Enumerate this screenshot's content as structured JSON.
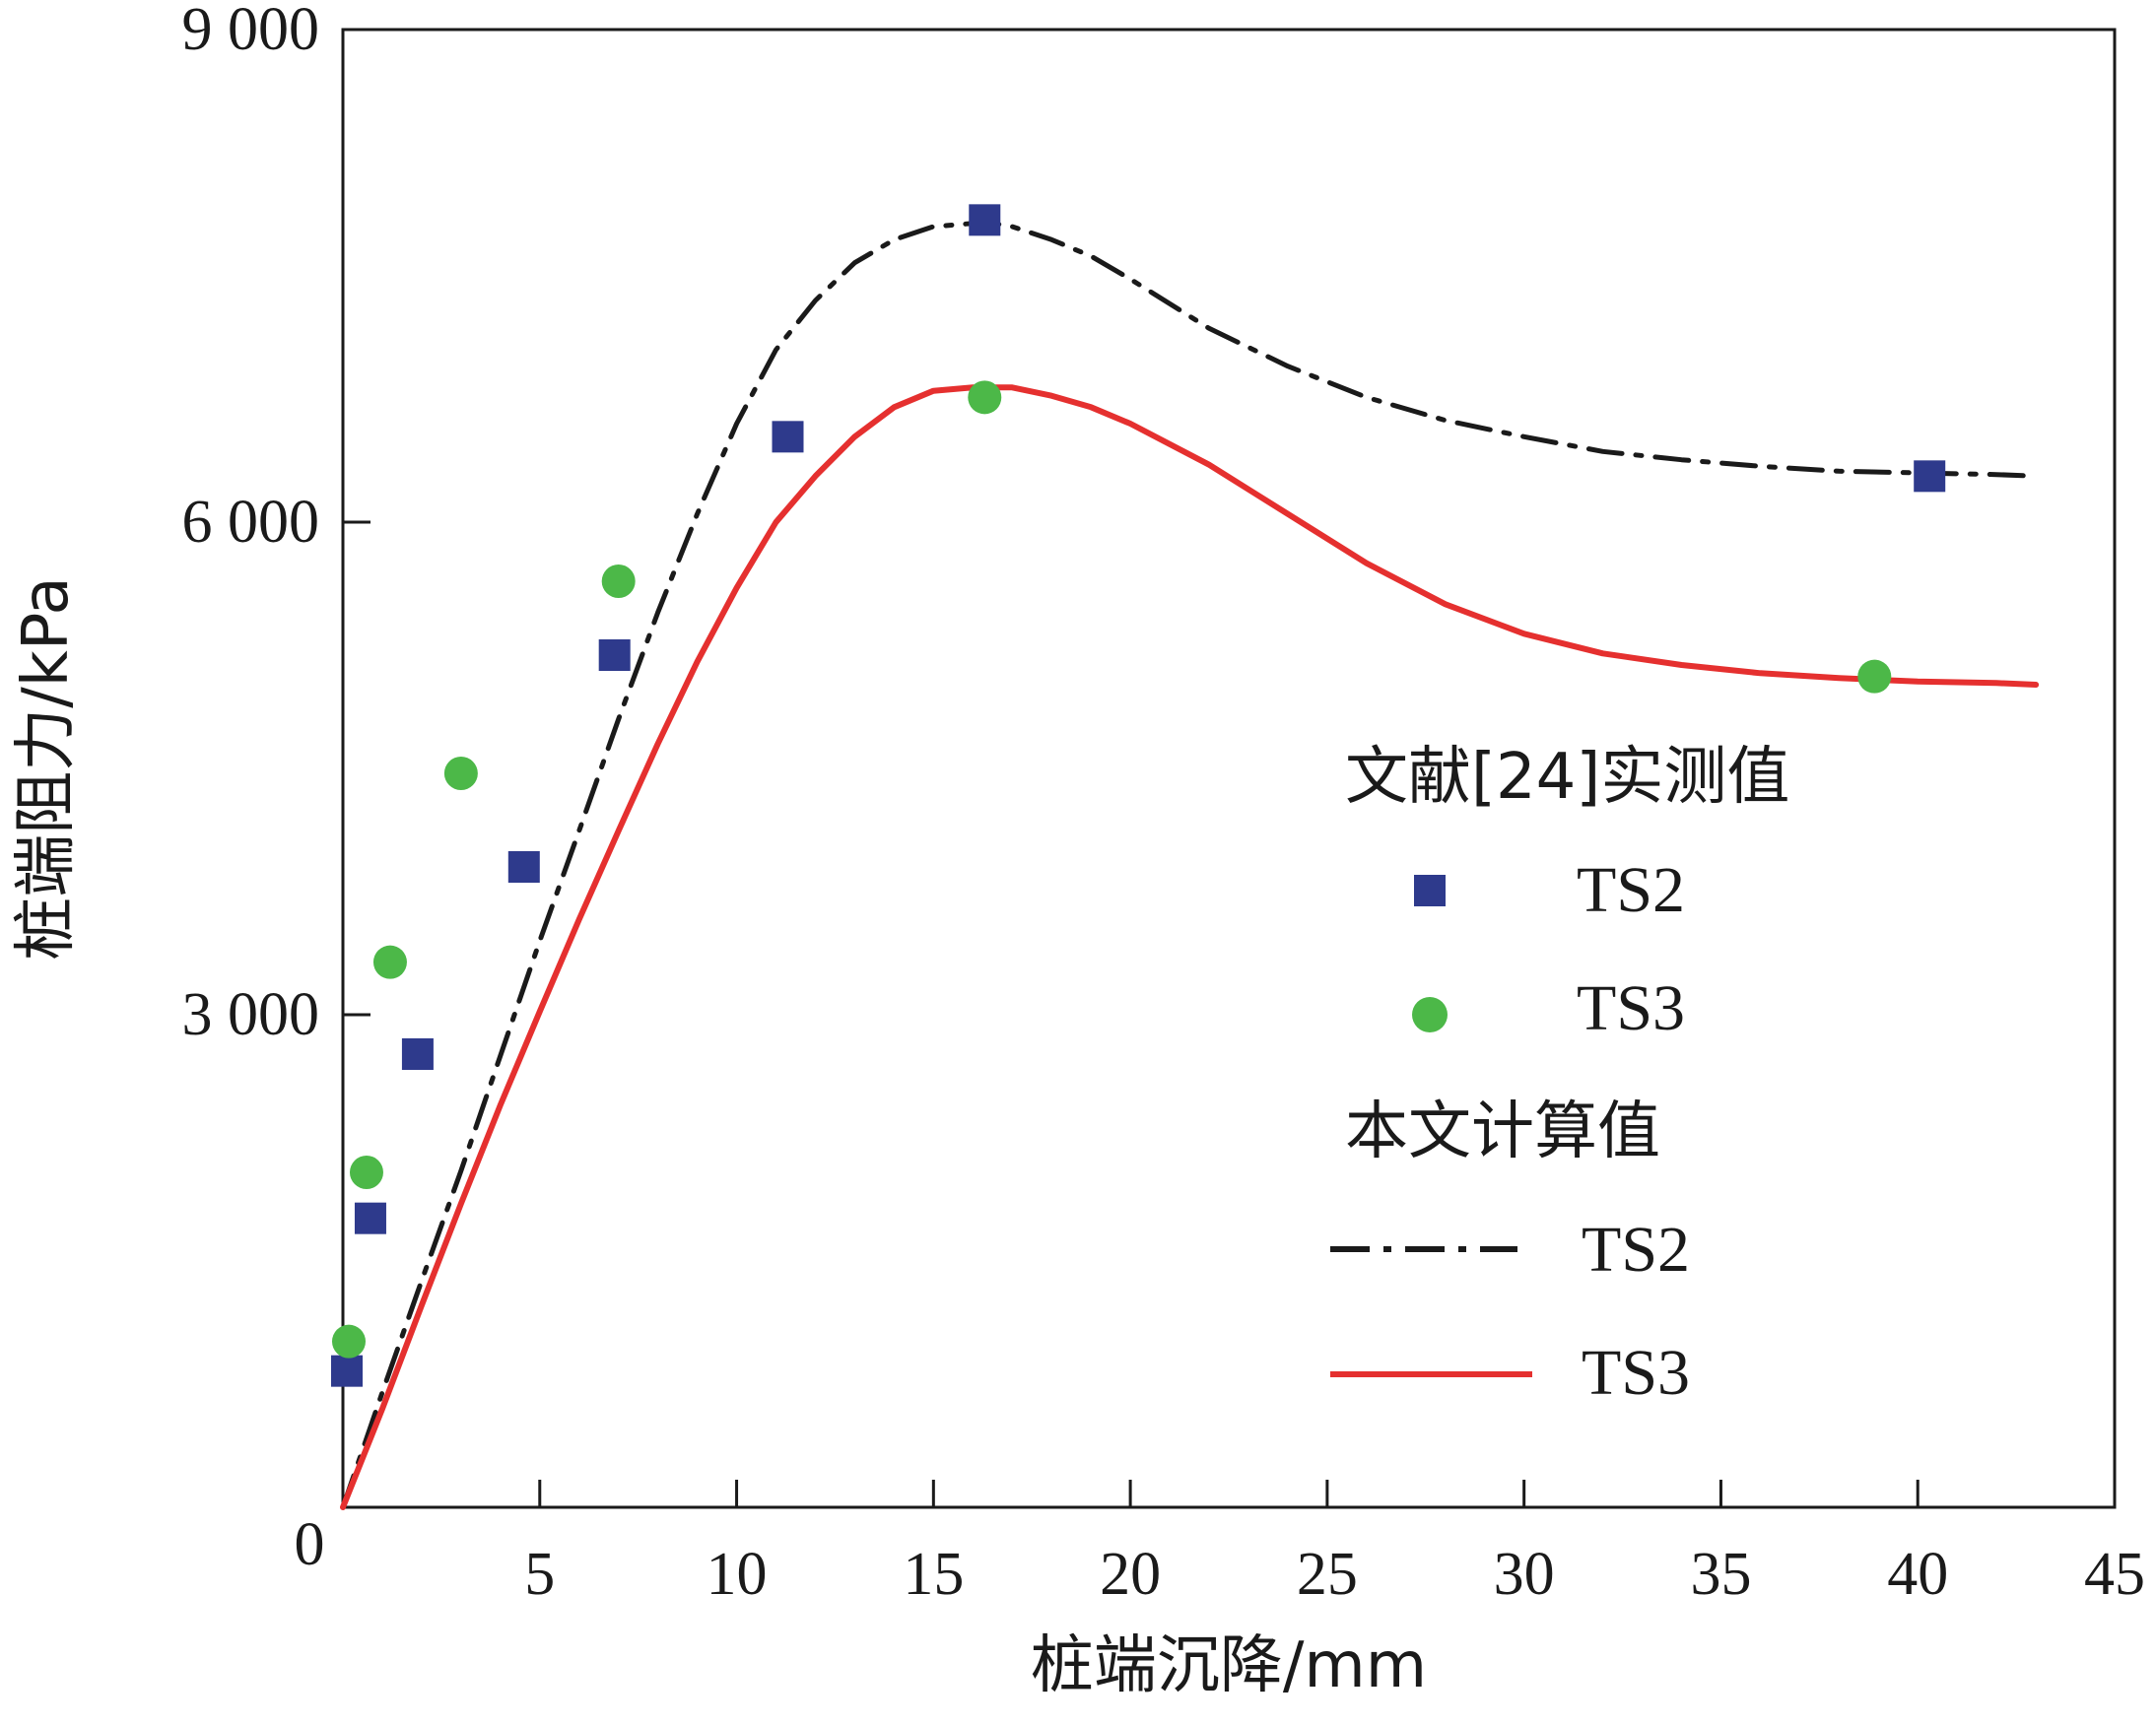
{
  "chart_data": {
    "type": "line",
    "xlabel": "桩端沉降/mm",
    "ylabel": "桩端阻力/kPa",
    "xlim": [
      0,
      45
    ],
    "ylim": [
      0,
      9000
    ],
    "x_ticks": [
      {
        "value": 0,
        "label": "0"
      },
      {
        "value": 5,
        "label": "5"
      },
      {
        "value": 10,
        "label": "10"
      },
      {
        "value": 15,
        "label": "15"
      },
      {
        "value": 20,
        "label": "20"
      },
      {
        "value": 25,
        "label": "25"
      },
      {
        "value": 30,
        "label": "30"
      },
      {
        "value": 35,
        "label": "35"
      },
      {
        "value": 40,
        "label": "40"
      },
      {
        "value": 45,
        "label": "45"
      }
    ],
    "y_ticks": [
      {
        "value": 3000,
        "label": "3 000"
      },
      {
        "value": 6000,
        "label": "6 000"
      },
      {
        "value": 9000,
        "label": "9 000"
      }
    ],
    "grid": false,
    "legend_position": "right-middle",
    "legend": {
      "measured_heading": "文献[24]实测值",
      "computed_heading": "本文计算值",
      "measured_ts2": "TS2",
      "measured_ts3": "TS3",
      "computed_ts2": "TS2",
      "computed_ts3": "TS3"
    },
    "series": [
      {
        "name": "TS2",
        "group": "measured",
        "marker": "square",
        "color": "#2e3a8c",
        "x": [
          0.1,
          0.7,
          1.9,
          4.6,
          6.9,
          11.3,
          16.3,
          40.3
        ],
        "y": [
          830,
          1760,
          2760,
          3900,
          5190,
          6520,
          7840,
          6280
        ]
      },
      {
        "name": "TS3",
        "group": "measured",
        "marker": "circle",
        "color": "#4cb848",
        "x": [
          0.15,
          0.6,
          1.2,
          3.0,
          7.0,
          16.3,
          38.9
        ],
        "y": [
          1010,
          2040,
          3320,
          4470,
          5640,
          6760,
          5060
        ]
      },
      {
        "name": "TS2",
        "group": "computed",
        "style": "dash-dot",
        "color": "#1a1a1a",
        "x": [
          0,
          1,
          2,
          3,
          4,
          5,
          6,
          7,
          8,
          9,
          10,
          11,
          12,
          13,
          14,
          15,
          16,
          16.5,
          17,
          18,
          19,
          20,
          22,
          24,
          26,
          28,
          30,
          32,
          34,
          36,
          38,
          40,
          42,
          43
        ],
        "y": [
          0,
          700,
          1380,
          2050,
          2750,
          3450,
          4120,
          4800,
          5450,
          6050,
          6600,
          7050,
          7350,
          7580,
          7720,
          7800,
          7820,
          7820,
          7800,
          7720,
          7620,
          7480,
          7180,
          6950,
          6760,
          6620,
          6520,
          6430,
          6380,
          6340,
          6310,
          6300,
          6290,
          6280
        ]
      },
      {
        "name": "TS3",
        "group": "computed",
        "style": "solid",
        "color": "#e5302f",
        "x": [
          0,
          1,
          2,
          3,
          4,
          5,
          6,
          7,
          8,
          9,
          10,
          11,
          12,
          13,
          14,
          15,
          16,
          17,
          18,
          19,
          20,
          22,
          24,
          26,
          28,
          30,
          32,
          34,
          36,
          38,
          40,
          42,
          43
        ],
        "y": [
          0,
          600,
          1230,
          1850,
          2450,
          3020,
          3580,
          4120,
          4650,
          5150,
          5600,
          6000,
          6280,
          6520,
          6700,
          6800,
          6820,
          6820,
          6770,
          6700,
          6600,
          6350,
          6050,
          5750,
          5500,
          5320,
          5200,
          5130,
          5080,
          5050,
          5030,
          5020,
          5010
        ]
      }
    ]
  }
}
